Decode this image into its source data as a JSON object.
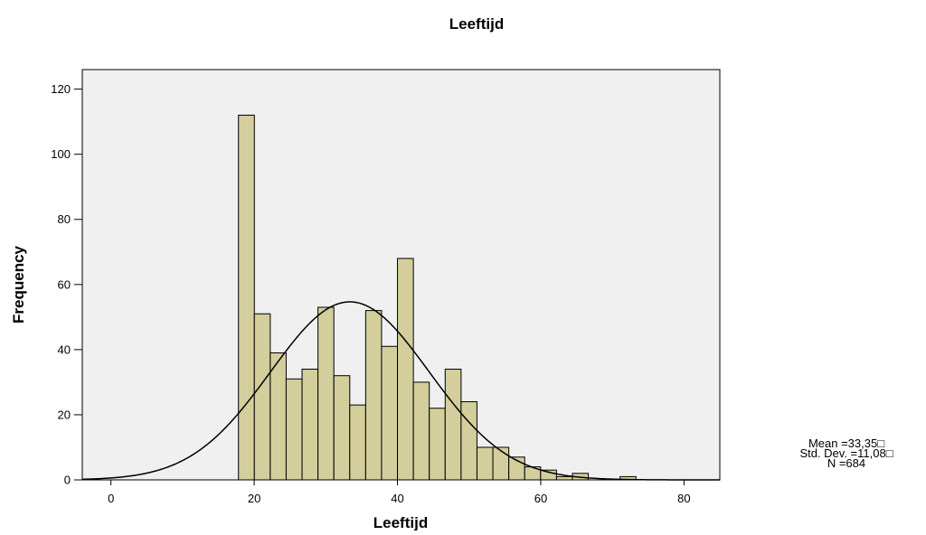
{
  "chart_data": {
    "type": "bar",
    "title": "Leeftijd",
    "xlabel": "Leeftijd",
    "ylabel": "Frequency",
    "xlim": [
      -4,
      85
    ],
    "ylim": [
      0,
      126
    ],
    "x_ticks": [
      0,
      20,
      40,
      60,
      80
    ],
    "y_ticks": [
      0,
      20,
      40,
      60,
      80,
      100,
      120
    ],
    "bin_width": 2.22,
    "bins": [
      {
        "start": 17.8,
        "value": 112
      },
      {
        "start": 20.02,
        "value": 51
      },
      {
        "start": 22.24,
        "value": 39
      },
      {
        "start": 24.46,
        "value": 31
      },
      {
        "start": 26.68,
        "value": 34
      },
      {
        "start": 28.9,
        "value": 53
      },
      {
        "start": 31.12,
        "value": 32
      },
      {
        "start": 33.34,
        "value": 23
      },
      {
        "start": 35.56,
        "value": 52
      },
      {
        "start": 37.78,
        "value": 41
      },
      {
        "start": 40.0,
        "value": 68
      },
      {
        "start": 42.22,
        "value": 30
      },
      {
        "start": 44.44,
        "value": 22
      },
      {
        "start": 46.66,
        "value": 34
      },
      {
        "start": 48.88,
        "value": 24
      },
      {
        "start": 51.1,
        "value": 10
      },
      {
        "start": 53.32,
        "value": 10
      },
      {
        "start": 55.54,
        "value": 7
      },
      {
        "start": 57.76,
        "value": 4
      },
      {
        "start": 59.98,
        "value": 3
      },
      {
        "start": 62.2,
        "value": 1
      },
      {
        "start": 64.42,
        "value": 2
      },
      {
        "start": 71.08,
        "value": 1
      }
    ],
    "normal_curve": {
      "mean": 33.35,
      "std_dev": 11.08,
      "n": 684
    },
    "grid": false,
    "colors": {
      "plot_background": "#f0f0f0",
      "bar_fill": "#d3ce9c",
      "bar_stroke": "#000000",
      "curve": "#000000"
    }
  },
  "stats": {
    "mean": "Mean =33,35□",
    "std_dev": "Std. Dev. =11,08□",
    "n": "N =684"
  }
}
